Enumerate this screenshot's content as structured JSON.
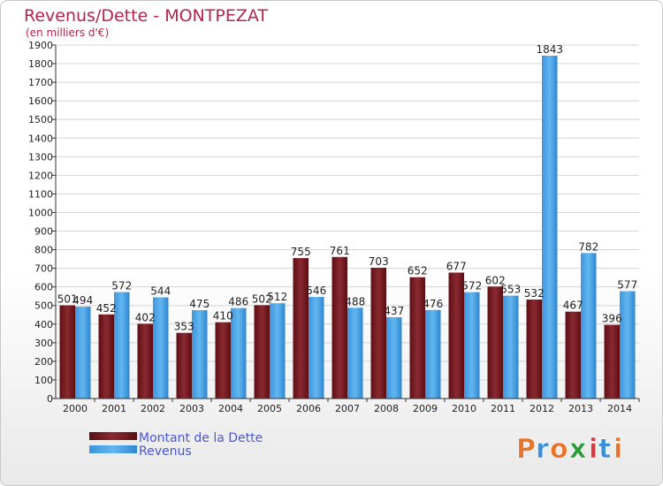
{
  "chart_data": {
    "type": "bar",
    "title": "Revenus/Dette - MONTPEZAT",
    "subtitle": "(en milliers d'€)",
    "categories": [
      "2000",
      "2001",
      "2002",
      "2003",
      "2004",
      "2005",
      "2006",
      "2007",
      "2008",
      "2009",
      "2010",
      "2011",
      "2012",
      "2013",
      "2014"
    ],
    "series": [
      {
        "name": "Montant de la Dette",
        "color": "#7a1a22",
        "values": [
          501,
          452,
          402,
          353,
          410,
          502,
          755,
          761,
          703,
          652,
          677,
          602,
          532,
          467,
          396
        ]
      },
      {
        "name": "Revenus",
        "color": "#4aa3e6",
        "values": [
          494,
          572,
          544,
          475,
          486,
          512,
          546,
          488,
          437,
          476,
          572,
          553,
          1843,
          782,
          577
        ]
      }
    ],
    "ylim": [
      0,
      1900
    ],
    "yticks": [
      "0",
      "100",
      "200",
      "300",
      "400",
      "500",
      "600",
      "700",
      "800",
      "900",
      "1000",
      "1100",
      "1200",
      "1300",
      "1400",
      "1500",
      "1600",
      "1700",
      "1800",
      "1900"
    ],
    "grid": true,
    "legend_position": "bottom-left"
  },
  "logo": {
    "letters": [
      "P",
      "r",
      "o",
      "x",
      "i",
      "t",
      "i"
    ],
    "colors": [
      "#e8742a",
      "#3a8fd6",
      "#e8742a",
      "#2a9a3a",
      "#d93b3b",
      "#3a8fd6",
      "#e8742a"
    ]
  }
}
